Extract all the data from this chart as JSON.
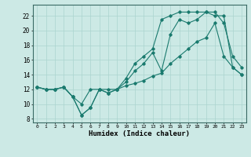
{
  "xlabel": "Humidex (Indice chaleur)",
  "ylabel": "",
  "xlim": [
    -0.5,
    23.5
  ],
  "ylim": [
    7.5,
    23.5
  ],
  "xticks": [
    0,
    1,
    2,
    3,
    4,
    5,
    6,
    7,
    8,
    9,
    10,
    11,
    12,
    13,
    14,
    15,
    16,
    17,
    18,
    19,
    20,
    21,
    22,
    23
  ],
  "yticks": [
    8,
    10,
    12,
    14,
    16,
    18,
    20,
    22
  ],
  "background_color": "#cce9e5",
  "grid_color": "#aad4cf",
  "line_color": "#1a7a6e",
  "line1_x": [
    0,
    1,
    2,
    3,
    4,
    5,
    6,
    7,
    8,
    9,
    10,
    11,
    12,
    13,
    14,
    15,
    16,
    17,
    18,
    19,
    20,
    21,
    22,
    23
  ],
  "line1_y": [
    12.3,
    12.0,
    12.0,
    12.3,
    11.0,
    10.0,
    12.0,
    12.0,
    12.0,
    12.0,
    12.5,
    12.8,
    13.2,
    13.8,
    14.2,
    15.5,
    16.5,
    17.5,
    18.5,
    19.0,
    21.0,
    16.5,
    15.0,
    14.0
  ],
  "line2_x": [
    0,
    1,
    2,
    3,
    4,
    5,
    6,
    7,
    8,
    9,
    10,
    11,
    12,
    13,
    14,
    15,
    16,
    17,
    18,
    19,
    20,
    21,
    22,
    23
  ],
  "line2_y": [
    12.3,
    12.0,
    12.0,
    12.3,
    11.0,
    8.5,
    9.5,
    12.0,
    11.5,
    12.0,
    13.0,
    14.5,
    15.5,
    17.0,
    14.5,
    19.5,
    21.5,
    21.0,
    21.5,
    22.5,
    22.5,
    21.0,
    16.5,
    15.0
  ],
  "line3_x": [
    0,
    1,
    2,
    3,
    4,
    5,
    6,
    7,
    8,
    9,
    10,
    11,
    12,
    13,
    14,
    15,
    16,
    17,
    18,
    19,
    20,
    21,
    22,
    23
  ],
  "line3_y": [
    12.3,
    12.0,
    12.0,
    12.3,
    11.0,
    8.5,
    9.5,
    12.0,
    11.5,
    12.0,
    13.5,
    15.5,
    16.5,
    17.5,
    21.5,
    22.0,
    22.5,
    22.5,
    22.5,
    22.5,
    22.0,
    22.0,
    15.0,
    14.0
  ]
}
